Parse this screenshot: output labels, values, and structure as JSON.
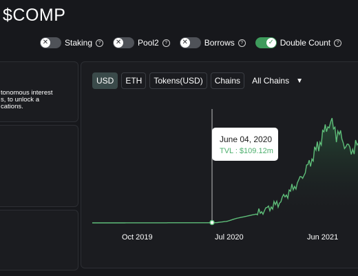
{
  "title": "$COMP",
  "toggles": [
    {
      "label": "Staking",
      "on": false
    },
    {
      "label": "Pool2",
      "on": false
    },
    {
      "label": "Borrows",
      "on": false
    },
    {
      "label": "Double Count",
      "on": true
    }
  ],
  "description": "tonomous interest\ns, to unlock a\ncations.",
  "chart_buttons": [
    "USD",
    "ETH",
    "Tokens(USD)",
    "Chains"
  ],
  "active_button": "USD",
  "chain_select": "All Chains",
  "tooltip": {
    "date": "June 04, 2020",
    "value": "TVL : $109.12m"
  },
  "colors": {
    "accent": "#3e9b5c",
    "line": "#5fbf7a",
    "background": "#17181c",
    "panel": "#1b1c20"
  },
  "chart_data": {
    "type": "area",
    "series": [
      {
        "x": [
          "2019-05",
          "2019-08",
          "2019-11",
          "2020-02",
          "2020-05",
          "2020-06-04",
          "2020-07",
          "2020-09",
          "2020-11",
          "2021-01",
          "2021-02",
          "2021-03",
          "2021-04",
          "2021-05",
          "2021-06",
          "2021-07",
          "2021-08"
        ],
        "values": [
          0,
          2,
          6,
          8,
          12,
          109,
          300,
          600,
          1300,
          2700,
          3900,
          5200,
          6700,
          5800,
          4800,
          5200,
          6300
        ]
      }
    ],
    "tick_labels": [
      "Oct 2019",
      "Jul 2020",
      "Jun 2021"
    ],
    "ylim": [
      0,
      7000
    ],
    "grid": false
  }
}
